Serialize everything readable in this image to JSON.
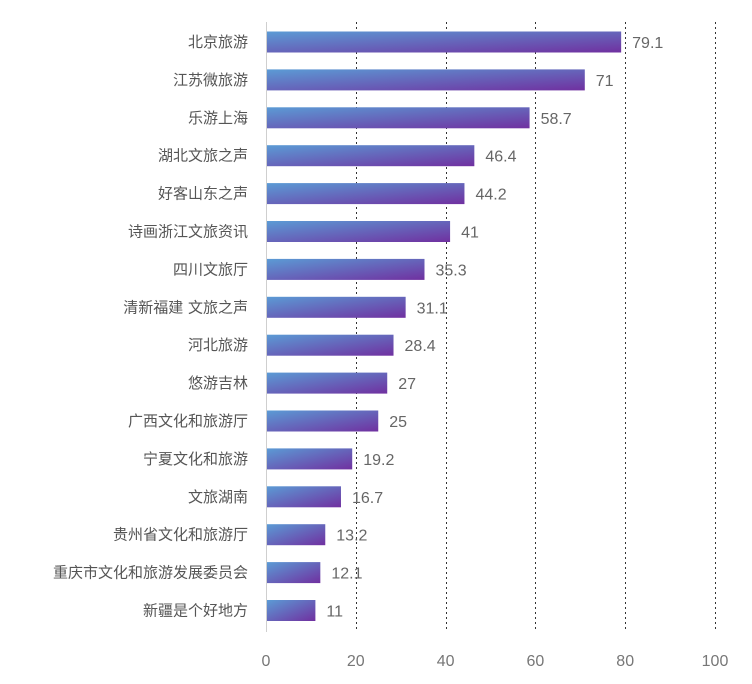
{
  "chart_data": {
    "type": "bar",
    "orientation": "horizontal",
    "categories": [
      "北京旅游",
      "江苏微旅游",
      "乐游上海",
      "湖北文旅之声",
      "好客山东之声",
      "诗画浙江文旅资讯",
      "四川文旅厅",
      "清新福建 文旅之声",
      "河北旅游",
      "悠游吉林",
      "广西文化和旅游厅",
      "宁夏文化和旅游",
      "文旅湖南",
      "贵州省文化和旅游厅",
      "重庆市文化和旅游发展委员会",
      "新疆是个好地方"
    ],
    "values": [
      79.1,
      71,
      58.7,
      46.4,
      44.2,
      41,
      35.3,
      31.1,
      28.4,
      27,
      25,
      19.2,
      16.7,
      13.2,
      12.1,
      11
    ],
    "value_labels": [
      "79.1",
      "71",
      "58.7",
      "46.4",
      "44.2",
      "41",
      "35.3",
      "31.1",
      "28.4",
      "27",
      "25",
      "19.2",
      "16.7",
      "13.2",
      "12.1",
      "11"
    ],
    "xlim": [
      0,
      100
    ],
    "x_ticks": [
      0,
      20,
      40,
      60,
      80,
      100
    ],
    "x_tick_labels": [
      "0",
      "20",
      "40",
      "60",
      "80",
      "100"
    ],
    "grid": true,
    "colors": {
      "bar_start": "#5b9bd5",
      "bar_end": "#7030a0"
    }
  }
}
